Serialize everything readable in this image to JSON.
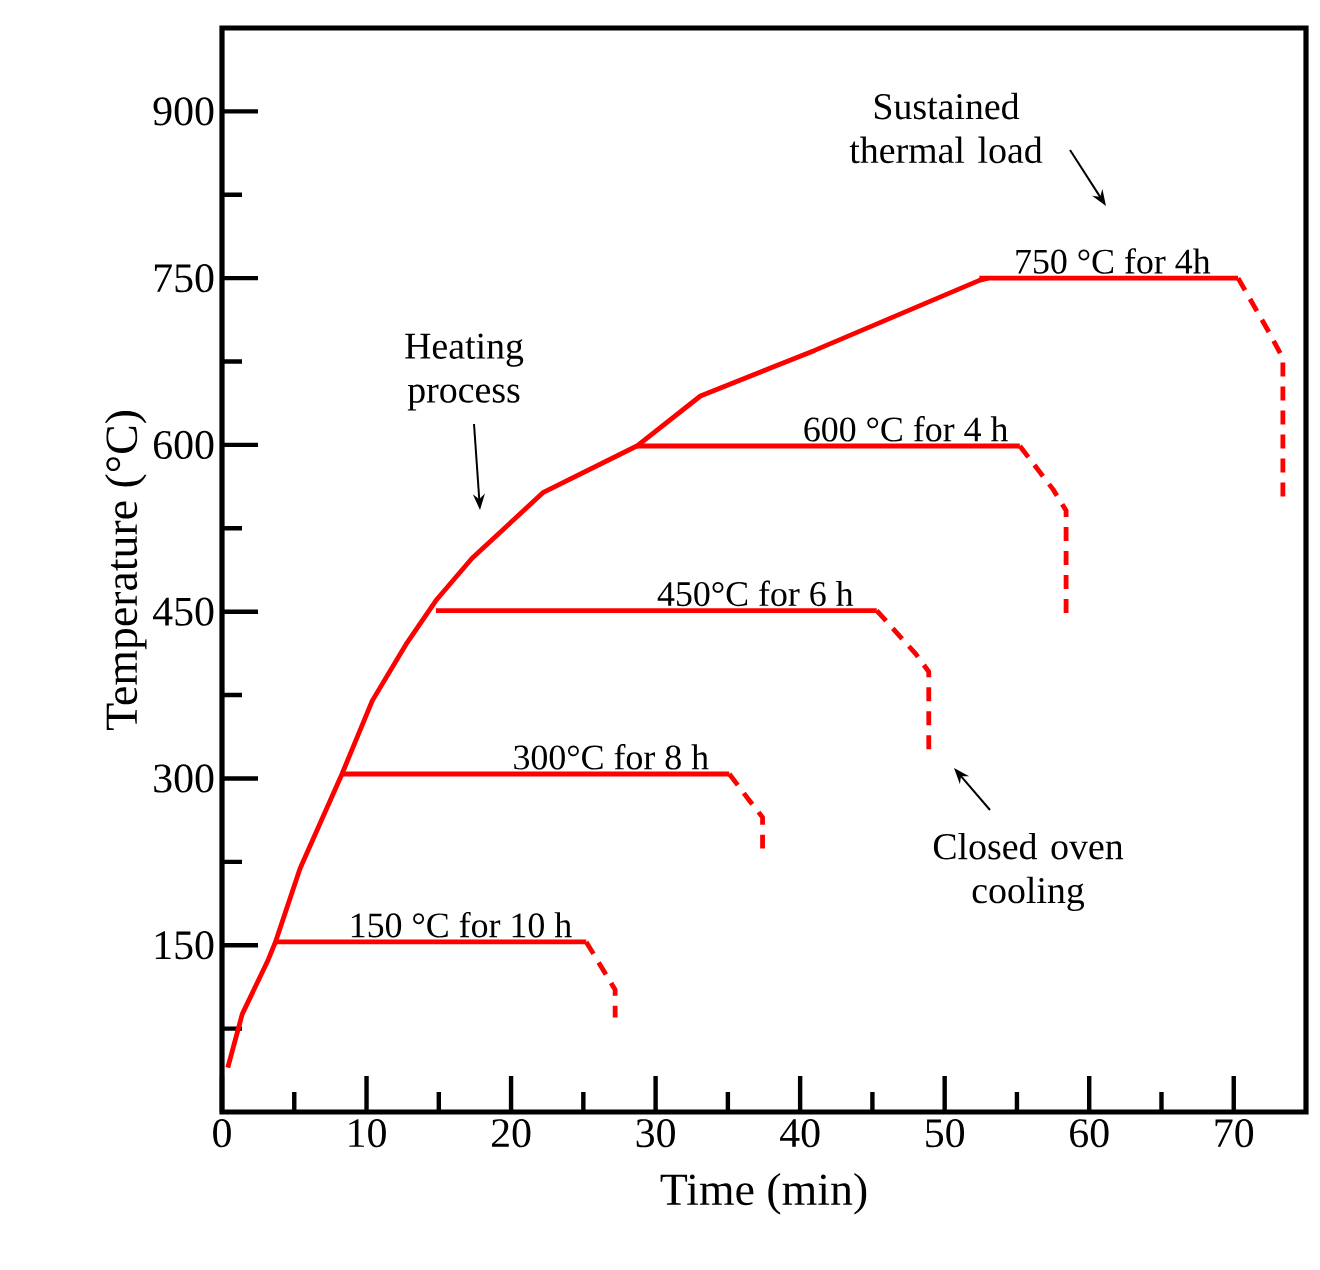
{
  "chart_data": {
    "type": "line",
    "xlabel": "Time (min)",
    "ylabel": "Temperature (°C)",
    "xlim": [
      0,
      75
    ],
    "ylim": [
      0,
      975
    ],
    "xticks": [
      0,
      {
        "value": 5,
        "label": null
      },
      10,
      {
        "value": 15,
        "label": null
      },
      20,
      {
        "value": 25,
        "label": null
      },
      30,
      {
        "value": 35,
        "label": null
      },
      40,
      {
        "value": 45,
        "label": null
      },
      50,
      {
        "value": 55,
        "label": null
      },
      60,
      {
        "value": 65,
        "label": null
      },
      70
    ],
    "yticks": [
      {
        "value": 75,
        "label": null
      },
      150,
      {
        "value": 225,
        "label": null
      },
      300,
      {
        "value": 375,
        "label": null
      },
      450,
      {
        "value": 525,
        "label": null
      },
      600,
      {
        "value": 675,
        "label": null
      },
      750,
      {
        "value": 825,
        "label": null
      },
      900
    ],
    "marker": "none",
    "series": [
      {
        "color": "#ff0000",
        "line_style": "solid",
        "x": [
          0.4,
          1.4,
          3.2,
          3.7,
          5.4,
          8.3,
          10.4,
          12.8,
          14.8,
          17.3,
          22.2,
          28.7,
          33.1,
          41,
          52.4,
          53
        ],
        "values": [
          40,
          88,
          137,
          153,
          219,
          304,
          370,
          422,
          460,
          498,
          557,
          599,
          644,
          685,
          748,
          750
        ]
      },
      {
        "color": "#ff0000",
        "line_style": "solid",
        "x": [
          3.7,
          25.2
        ],
        "values": [
          153,
          153
        ]
      },
      {
        "color": "#ff0000",
        "line_style": "solid",
        "x": [
          8.3,
          35.1
        ],
        "values": [
          304,
          304
        ]
      },
      {
        "color": "#ff0000",
        "line_style": "solid",
        "x": [
          14.8,
          45.3
        ],
        "values": [
          451,
          451
        ]
      },
      {
        "color": "#ff0000",
        "line_style": "solid",
        "x": [
          28.7,
          55.2
        ],
        "values": [
          599,
          599
        ]
      },
      {
        "color": "#ff0000",
        "line_style": "solid",
        "x": [
          52.4,
          70.3
        ],
        "values": [
          750,
          750
        ]
      },
      {
        "color": "#ff0000",
        "line_style": "dashed",
        "x": [
          25.2,
          26.5,
          27.2,
          27.2
        ],
        "values": [
          153,
          125,
          110,
          85
        ]
      },
      {
        "color": "#ff0000",
        "line_style": "dashed",
        "x": [
          35.1,
          36.5,
          37.4,
          37.4
        ],
        "values": [
          304,
          280,
          265,
          237
        ]
      },
      {
        "color": "#ff0000",
        "line_style": "dashed",
        "x": [
          45.3,
          48,
          48.9,
          48.9
        ],
        "values": [
          451,
          412,
          396,
          322
        ]
      },
      {
        "color": "#ff0000",
        "line_style": "dashed",
        "x": [
          55.2,
          57.5,
          58.4,
          58.4
        ],
        "values": [
          599,
          560,
          541,
          448
        ]
      },
      {
        "color": "#ff0000",
        "line_style": "dashed",
        "x": [
          70.3,
          72.5,
          73.4,
          73.4
        ],
        "values": [
          750,
          700,
          678,
          550
        ]
      }
    ],
    "annotations": [
      {
        "text": "150 °C for 10 h",
        "x": 16.5,
        "y": 153
      },
      {
        "text": "300°C for 8 h",
        "x": 26.9,
        "y": 304
      },
      {
        "text": "450°C for 6 h",
        "x": 36.9,
        "y": 451
      },
      {
        "text": "600 °C for 4 h",
        "x": 47.3,
        "y": 599
      },
      {
        "text": "750 °C for 4h",
        "x": 61.6,
        "y": 750
      },
      "Heating process",
      "Sustained thermal load",
      "Closed oven cooling"
    ]
  }
}
